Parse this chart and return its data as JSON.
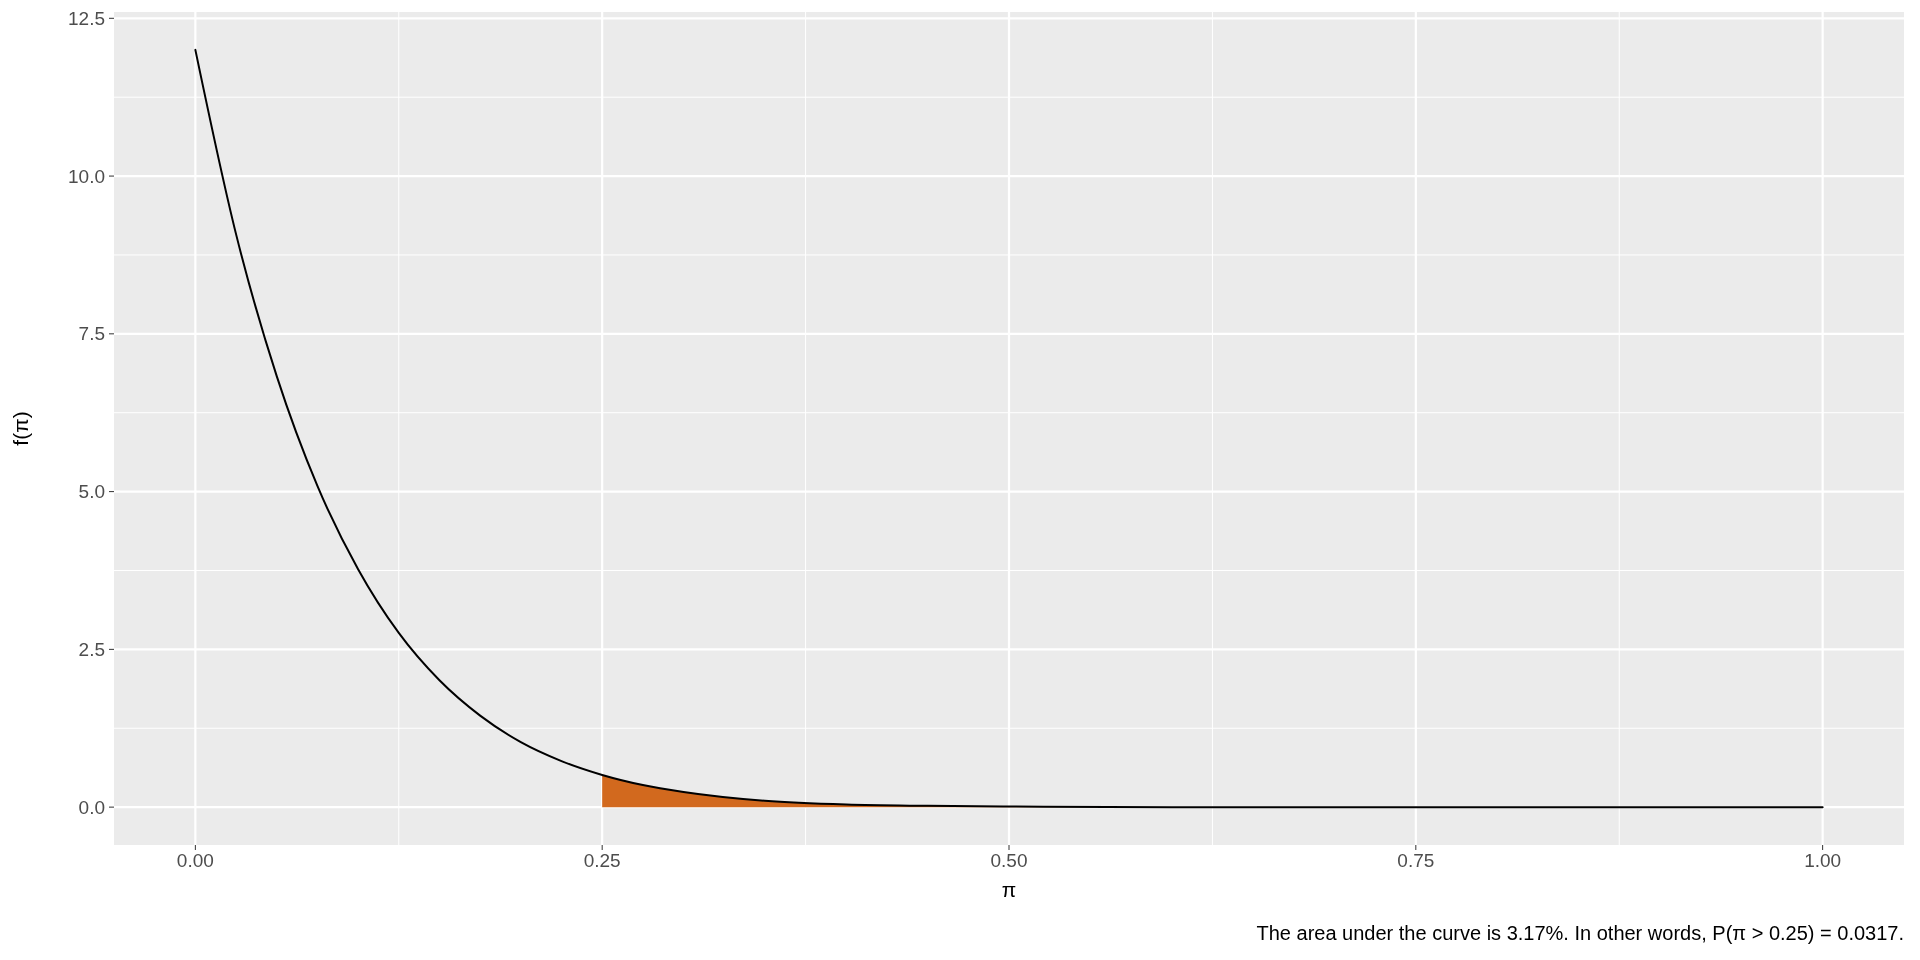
{
  "chart_data": {
    "type": "line",
    "xlabel": "π",
    "ylabel": "f(π)",
    "annotations": [
      "The area under the curve is 3.17%. In other words, P(π > 0.25) = 0.0317."
    ],
    "xlim": [
      -0.05,
      1.05
    ],
    "ylim": [
      -0.6,
      12.6
    ],
    "xticks": [
      {
        "value": 0,
        "label": "0.00"
      },
      {
        "value": 0.25,
        "label": "0.25"
      },
      {
        "value": 0.5,
        "label": "0.50"
      },
      {
        "value": 0.75,
        "label": "0.75"
      },
      {
        "value": 1,
        "label": "1.00"
      }
    ],
    "yticks": [
      {
        "value": 0,
        "label": "0.0"
      },
      {
        "value": 2.5,
        "label": "2.5"
      },
      {
        "value": 5,
        "label": "5.0"
      },
      {
        "value": 7.5,
        "label": "7.5"
      },
      {
        "value": 10,
        "label": "10.0"
      },
      {
        "value": 12.5,
        "label": "12.5"
      }
    ],
    "grid": true,
    "series": [
      {
        "type": "area",
        "color": "#d2691e",
        "x": [
          0.25,
          0.275,
          0.3,
          0.35,
          0.4,
          0.45,
          0.5,
          0.6,
          0.7,
          0.8,
          0.9,
          1.0
        ],
        "values": [
          0.51,
          0.35,
          0.24,
          0.1,
          0.04,
          0.02,
          0.01,
          0,
          0,
          0,
          0,
          0
        ]
      },
      {
        "color": "#000000",
        "x": [
          0,
          0.025,
          0.05,
          0.075,
          0.1,
          0.125,
          0.15,
          0.175,
          0.2,
          0.225,
          0.25,
          0.275,
          0.3,
          0.35,
          0.4,
          0.45,
          0.5,
          0.6,
          0.7,
          0.8,
          0.9,
          1.0
        ],
        "values": [
          12,
          9.08,
          6.83,
          5.09,
          3.77,
          2.76,
          2.01,
          1.45,
          1.03,
          0.73,
          0.51,
          0.35,
          0.24,
          0.1,
          0.04,
          0.02,
          0.01,
          0,
          0,
          0,
          0,
          0
        ]
      }
    ]
  }
}
